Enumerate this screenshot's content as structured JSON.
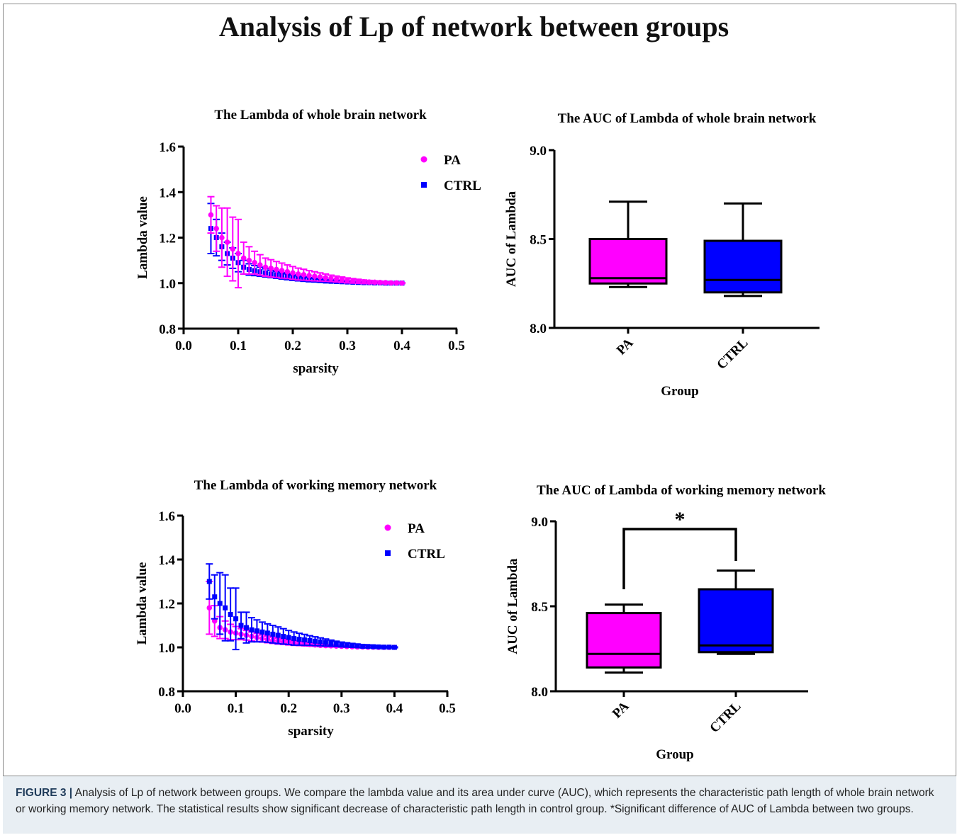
{
  "page_title": "Analysis of Lp of network between groups",
  "caption": {
    "label": "FIGURE 3 |",
    "text": "Analysis of Lp of network between groups. We compare the lambda value and its area under curve (AUC), which represents the characteristic path length of whole brain network or working memory network. The statistical results show significant decrease of characteristic path length in control group. *Significant difference of AUC of Lambda between two groups."
  },
  "colors": {
    "PA": "#ff00ff",
    "CTRL": "#0000ff",
    "axis": "#000000"
  },
  "chart_data": [
    {
      "id": "line-whole",
      "type": "scatter",
      "title": "The Lambda of whole brain network",
      "xlabel": "sparsity",
      "ylabel": "Lambda value",
      "xlim": [
        0.0,
        0.5
      ],
      "ylim": [
        0.8,
        1.6
      ],
      "xticks": [
        "0.0",
        "0.1",
        "0.2",
        "0.3",
        "0.4",
        "0.5"
      ],
      "yticks": [
        "0.8",
        "1.0",
        "1.2",
        "1.4",
        "1.6"
      ],
      "legend_position": "top-right",
      "series": [
        {
          "name": "PA",
          "marker": "circle",
          "x": [
            0.05,
            0.06,
            0.07,
            0.08,
            0.09,
            0.1,
            0.11,
            0.12,
            0.13,
            0.14,
            0.15,
            0.16,
            0.17,
            0.18,
            0.19,
            0.2,
            0.21,
            0.22,
            0.23,
            0.24,
            0.25,
            0.26,
            0.27,
            0.28,
            0.29,
            0.3,
            0.31,
            0.32,
            0.33,
            0.34,
            0.35,
            0.36,
            0.37,
            0.38,
            0.39,
            0.4
          ],
          "y": [
            1.3,
            1.24,
            1.2,
            1.18,
            1.15,
            1.13,
            1.11,
            1.1,
            1.09,
            1.08,
            1.07,
            1.065,
            1.06,
            1.055,
            1.05,
            1.045,
            1.04,
            1.037,
            1.033,
            1.03,
            1.027,
            1.024,
            1.021,
            1.018,
            1.015,
            1.012,
            1.01,
            1.008,
            1.006,
            1.005,
            1.004,
            1.003,
            1.002,
            1.001,
            1.001,
            1.0
          ],
          "err": [
            0.08,
            0.1,
            0.13,
            0.15,
            0.14,
            0.15,
            0.07,
            0.06,
            0.05,
            0.045,
            0.04,
            0.038,
            0.035,
            0.033,
            0.03,
            0.028,
            0.026,
            0.024,
            0.022,
            0.02,
            0.018,
            0.016,
            0.014,
            0.013,
            0.012,
            0.011,
            0.01,
            0.009,
            0.008,
            0.007,
            0.006,
            0.005,
            0.004,
            0.003,
            0.003,
            0.002
          ]
        },
        {
          "name": "CTRL",
          "marker": "square",
          "x": [
            0.05,
            0.06,
            0.07,
            0.08,
            0.09,
            0.1,
            0.11,
            0.12,
            0.13,
            0.14,
            0.15,
            0.16,
            0.17,
            0.18,
            0.19,
            0.2,
            0.21,
            0.22,
            0.23,
            0.24,
            0.25,
            0.26,
            0.27,
            0.28,
            0.29,
            0.3,
            0.31,
            0.32,
            0.33,
            0.34,
            0.35,
            0.36,
            0.37,
            0.38,
            0.39,
            0.4
          ],
          "y": [
            1.24,
            1.2,
            1.16,
            1.13,
            1.11,
            1.09,
            1.07,
            1.06,
            1.055,
            1.05,
            1.045,
            1.04,
            1.036,
            1.032,
            1.028,
            1.024,
            1.021,
            1.018,
            1.015,
            1.013,
            1.011,
            1.009,
            1.008,
            1.007,
            1.006,
            1.005,
            1.004,
            1.003,
            1.002,
            1.002,
            1.001,
            1.001,
            1.0,
            1.0,
            1.0,
            1.0
          ],
          "err": [
            0.11,
            0.08,
            0.06,
            0.05,
            0.045,
            0.04,
            0.03,
            0.025,
            0.022,
            0.02,
            0.018,
            0.016,
            0.015,
            0.014,
            0.013,
            0.012,
            0.011,
            0.01,
            0.009,
            0.008,
            0.007,
            0.006,
            0.006,
            0.005,
            0.005,
            0.004,
            0.004,
            0.003,
            0.003,
            0.002,
            0.002,
            0.002,
            0.001,
            0.001,
            0.001,
            0.001
          ]
        }
      ]
    },
    {
      "id": "box-whole",
      "type": "box",
      "title": "The AUC of Lambda of whole brain network",
      "xlabel": "Group",
      "ylabel": "AUC of Lambda",
      "ylim": [
        8.0,
        9.0
      ],
      "yticks": [
        "8.0",
        "8.5",
        "9.0"
      ],
      "categories": [
        "PA",
        "CTRL"
      ],
      "boxes": [
        {
          "name": "PA",
          "min": 8.23,
          "q1": 8.25,
          "median": 8.28,
          "q3": 8.5,
          "max": 8.71
        },
        {
          "name": "CTRL",
          "min": 8.18,
          "q1": 8.2,
          "median": 8.27,
          "q3": 8.49,
          "max": 8.7
        }
      ],
      "significance": ""
    },
    {
      "id": "line-wm",
      "type": "scatter",
      "title": "The Lambda of  working memory network",
      "xlabel": "sparsity",
      "ylabel": "Lambda value",
      "xlim": [
        0.0,
        0.5
      ],
      "ylim": [
        0.8,
        1.6
      ],
      "xticks": [
        "0.0",
        "0.1",
        "0.2",
        "0.3",
        "0.4",
        "0.5"
      ],
      "yticks": [
        "0.8",
        "1.0",
        "1.2",
        "1.4",
        "1.6"
      ],
      "legend_position": "top-right",
      "series": [
        {
          "name": "PA",
          "marker": "circle",
          "x": [
            0.05,
            0.06,
            0.07,
            0.08,
            0.09,
            0.1,
            0.11,
            0.12,
            0.13,
            0.14,
            0.15,
            0.16,
            0.17,
            0.18,
            0.19,
            0.2,
            0.21,
            0.22,
            0.23,
            0.24,
            0.25,
            0.26,
            0.27,
            0.28,
            0.29,
            0.3,
            0.31,
            0.32,
            0.33,
            0.34,
            0.35,
            0.36,
            0.37,
            0.38,
            0.39,
            0.4
          ],
          "y": [
            1.18,
            1.12,
            1.09,
            1.08,
            1.07,
            1.065,
            1.06,
            1.055,
            1.05,
            1.045,
            1.04,
            1.036,
            1.032,
            1.028,
            1.025,
            1.022,
            1.019,
            1.017,
            1.015,
            1.013,
            1.011,
            1.009,
            1.008,
            1.007,
            1.006,
            1.005,
            1.004,
            1.003,
            1.002,
            1.002,
            1.001,
            1.001,
            1.0,
            1.0,
            1.0,
            1.0
          ],
          "err": [
            0.12,
            0.07,
            0.05,
            0.04,
            0.035,
            0.03,
            0.025,
            0.022,
            0.02,
            0.018,
            0.016,
            0.015,
            0.014,
            0.013,
            0.012,
            0.011,
            0.01,
            0.009,
            0.008,
            0.007,
            0.006,
            0.006,
            0.005,
            0.005,
            0.004,
            0.004,
            0.003,
            0.003,
            0.002,
            0.002,
            0.002,
            0.001,
            0.001,
            0.001,
            0.001,
            0.001
          ]
        },
        {
          "name": "CTRL",
          "marker": "square",
          "x": [
            0.05,
            0.06,
            0.07,
            0.08,
            0.09,
            0.1,
            0.11,
            0.12,
            0.13,
            0.14,
            0.15,
            0.16,
            0.17,
            0.18,
            0.19,
            0.2,
            0.21,
            0.22,
            0.23,
            0.24,
            0.25,
            0.26,
            0.27,
            0.28,
            0.29,
            0.3,
            0.31,
            0.32,
            0.33,
            0.34,
            0.35,
            0.36,
            0.37,
            0.38,
            0.39,
            0.4
          ],
          "y": [
            1.3,
            1.23,
            1.2,
            1.18,
            1.15,
            1.13,
            1.1,
            1.09,
            1.08,
            1.075,
            1.07,
            1.065,
            1.06,
            1.055,
            1.05,
            1.045,
            1.04,
            1.037,
            1.034,
            1.031,
            1.028,
            1.025,
            1.022,
            1.019,
            1.016,
            1.013,
            1.011,
            1.009,
            1.007,
            1.005,
            1.004,
            1.003,
            1.002,
            1.001,
            1.001,
            1.0
          ],
          "err": [
            0.08,
            0.1,
            0.14,
            0.15,
            0.12,
            0.14,
            0.06,
            0.07,
            0.055,
            0.05,
            0.045,
            0.042,
            0.04,
            0.038,
            0.035,
            0.032,
            0.03,
            0.027,
            0.025,
            0.022,
            0.02,
            0.018,
            0.016,
            0.014,
            0.012,
            0.011,
            0.01,
            0.009,
            0.008,
            0.007,
            0.006,
            0.005,
            0.004,
            0.003,
            0.003,
            0.002
          ]
        }
      ]
    },
    {
      "id": "box-wm",
      "type": "box",
      "title": "The AUC of Lambda of working memory network",
      "xlabel": "Group",
      "ylabel": "AUC of Lambda",
      "ylim": [
        8.0,
        9.0
      ],
      "yticks": [
        "8.0",
        "8.5",
        "9.0"
      ],
      "categories": [
        "PA",
        "CTRL"
      ],
      "boxes": [
        {
          "name": "PA",
          "min": 8.11,
          "q1": 8.14,
          "median": 8.22,
          "q3": 8.46,
          "max": 8.51
        },
        {
          "name": "CTRL",
          "min": 8.22,
          "q1": 8.23,
          "median": 8.27,
          "q3": 8.6,
          "max": 8.71
        }
      ],
      "significance": "*"
    }
  ]
}
